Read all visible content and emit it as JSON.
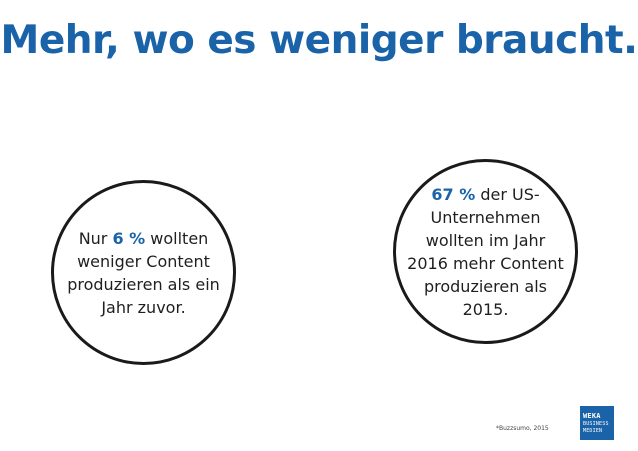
{
  "title": "Mehr, wo es weniger braucht.",
  "left_circle": {
    "pre": "Nur ",
    "percent": "6 %",
    "line1_rest": " wollten",
    "line2": "weniger Content",
    "line3": "produzieren als ein",
    "line4": "Jahr zuvor."
  },
  "right_circle": {
    "percent": "67 %",
    "line1_rest": " der US-",
    "line2": "Unternehmen",
    "line3": "wollten im Jahr",
    "line4": "2016 mehr Content",
    "line5": "produzieren als",
    "line6": "2015."
  },
  "source": "*Buzzsumo, 2015",
  "logo": {
    "brand": "WEKA",
    "line2": "BUSINESS",
    "line3": "MEDIEN"
  },
  "colors": {
    "accent": "#1a63a8",
    "text": "#1f1f1f",
    "circle_border": "#1a1a1a"
  }
}
